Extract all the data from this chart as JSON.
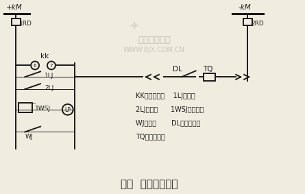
{
  "title": "图一  保护跳闸电路",
  "legend_lines": [
    "KK：转换开关    1LJ：速断",
    "2LJ：过流      1WSJ：重瓦斯",
    "WJ：温度       DL：辅助开关",
    "TQ：跳闸线圈"
  ],
  "bg_color": "#f0ece0",
  "line_color": "#1a1a1a",
  "text_color": "#1a1a1a",
  "watermark_line1": "北极星电力网",
  "watermark_line2": "WWW.BJX.COM.CN"
}
